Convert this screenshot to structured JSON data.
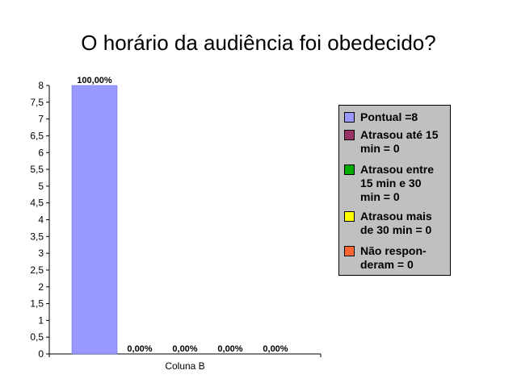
{
  "title": "O horário da audiência foi obedecido?",
  "chart_data": {
    "type": "bar",
    "categories": [
      "Coluna B"
    ],
    "series": [
      {
        "name": "Pontual =8",
        "value": 8,
        "label": "100,00%",
        "color": "#9999ff"
      },
      {
        "name": "Atrasou até 15 min = 0",
        "value": 0,
        "label": "0,00%",
        "color": "#993366"
      },
      {
        "name": "Atrasou entre 15 min e 30 min = 0",
        "value": 0,
        "label": "0,00%",
        "color": "#00aa00"
      },
      {
        "name": "Atrasou mais de 30 min = 0",
        "value": 0,
        "label": "0,00%",
        "color": "#ffff00"
      },
      {
        "name": "Não responderam = 0",
        "value": 0,
        "label": "0,00%",
        "color": "#ff6633"
      }
    ],
    "ylim": [
      0,
      8
    ],
    "yticks": [
      "0",
      "0,5",
      "1",
      "1,5",
      "2",
      "2,5",
      "3",
      "3,5",
      "4",
      "4,5",
      "5",
      "5,5",
      "6",
      "6,5",
      "7",
      "7,5",
      "8"
    ],
    "grid": false,
    "legend_position": "right"
  },
  "legend": {
    "items": [
      {
        "text": "Pontual =8",
        "color": "#9999ff"
      },
      {
        "text": "Atrasou até 15\nmin = 0",
        "color": "#993366"
      },
      {
        "text": "Atrasou entre\n15 min e 30\nmin = 0",
        "color": "#00aa00"
      },
      {
        "text": "Atrasou mais\nde 30 min = 0",
        "color": "#ffff00"
      },
      {
        "text": "Não respon-\nderam = 0",
        "color": "#ff6633"
      }
    ]
  }
}
